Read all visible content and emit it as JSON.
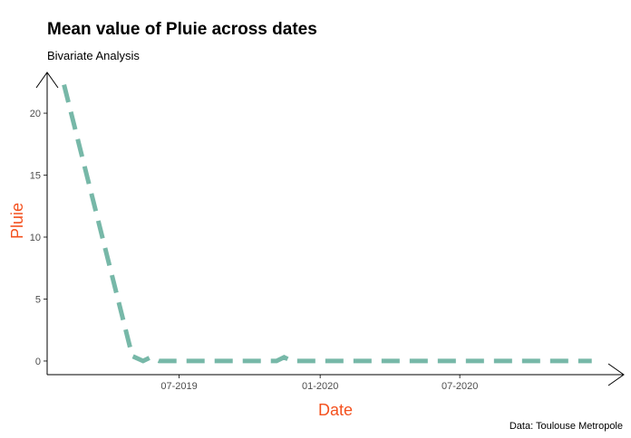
{
  "chart_data": {
    "type": "line",
    "title": "Mean value of Pluie across dates",
    "subtitle": "Bivariate Analysis",
    "xlabel": "Date",
    "ylabel": "Pluie",
    "caption": "Data: Toulouse Metropole",
    "x_ticks": [
      {
        "date": "2019-07-01",
        "label": "07-2019"
      },
      {
        "date": "2020-01-01",
        "label": "01-2020"
      },
      {
        "date": "2020-07-01",
        "label": "07-2020"
      }
    ],
    "y_ticks": [
      0,
      5,
      10,
      15,
      20
    ],
    "xlim": [
      "2019-01-10",
      "2020-12-31"
    ],
    "ylim": [
      -1.1,
      23
    ],
    "grid": false,
    "series": [
      {
        "color": "#77b8a8",
        "line_style": "dashed",
        "points": [
          {
            "x": "2019-02-01",
            "y": 22.3
          },
          {
            "x": "2019-05-01",
            "y": 0.4
          },
          {
            "x": "2019-05-15",
            "y": 0.0
          },
          {
            "x": "2019-05-25",
            "y": 0.3
          },
          {
            "x": "2019-06-05",
            "y": 0.0
          },
          {
            "x": "2019-11-05",
            "y": 0.0
          },
          {
            "x": "2019-11-15",
            "y": 0.3
          },
          {
            "x": "2019-11-25",
            "y": 0.0
          },
          {
            "x": "2020-12-20",
            "y": 0.0
          }
        ]
      }
    ],
    "colors": {
      "axis_title": "#f4511e",
      "axis_line": "#000000",
      "tick_label": "#4d4d4d"
    }
  }
}
